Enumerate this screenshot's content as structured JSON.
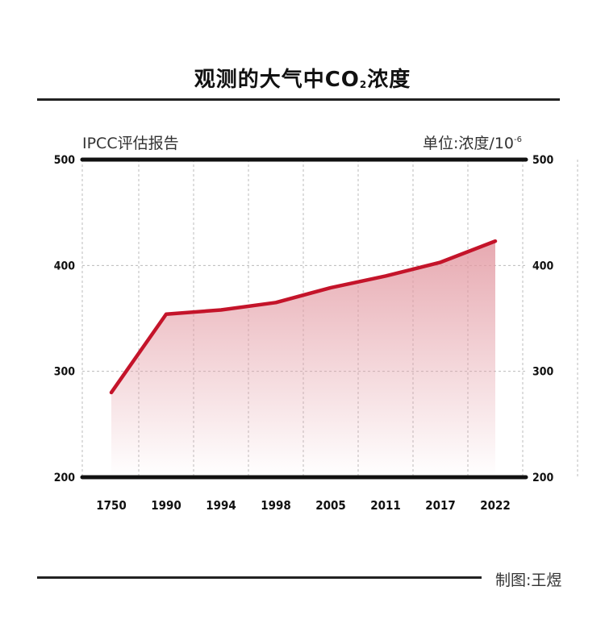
{
  "title_pre": "观测的大气中CO",
  "title_sub": "2",
  "title_post": "浓度",
  "source_label": "IPCC评估报告",
  "unit_label": "单位:浓度/10",
  "unit_exponent": "-6",
  "credit": "制图:王煜",
  "colors": {
    "line": "#c4142a",
    "fill": "#e39aa3",
    "grid": "#bbbbbb",
    "axis": "#111111"
  },
  "chart_data": {
    "type": "area",
    "x": [
      "1750",
      "1990",
      "1994",
      "1998",
      "2005",
      "2011",
      "2017",
      "2022"
    ],
    "series": [
      {
        "values": [
          280,
          354,
          358,
          365,
          379,
          390,
          403,
          423
        ]
      }
    ],
    "ylim": [
      200,
      500
    ],
    "yticks": [
      "200",
      "300",
      "400",
      "500"
    ],
    "grid": true,
    "dual_y_axis": true
  }
}
